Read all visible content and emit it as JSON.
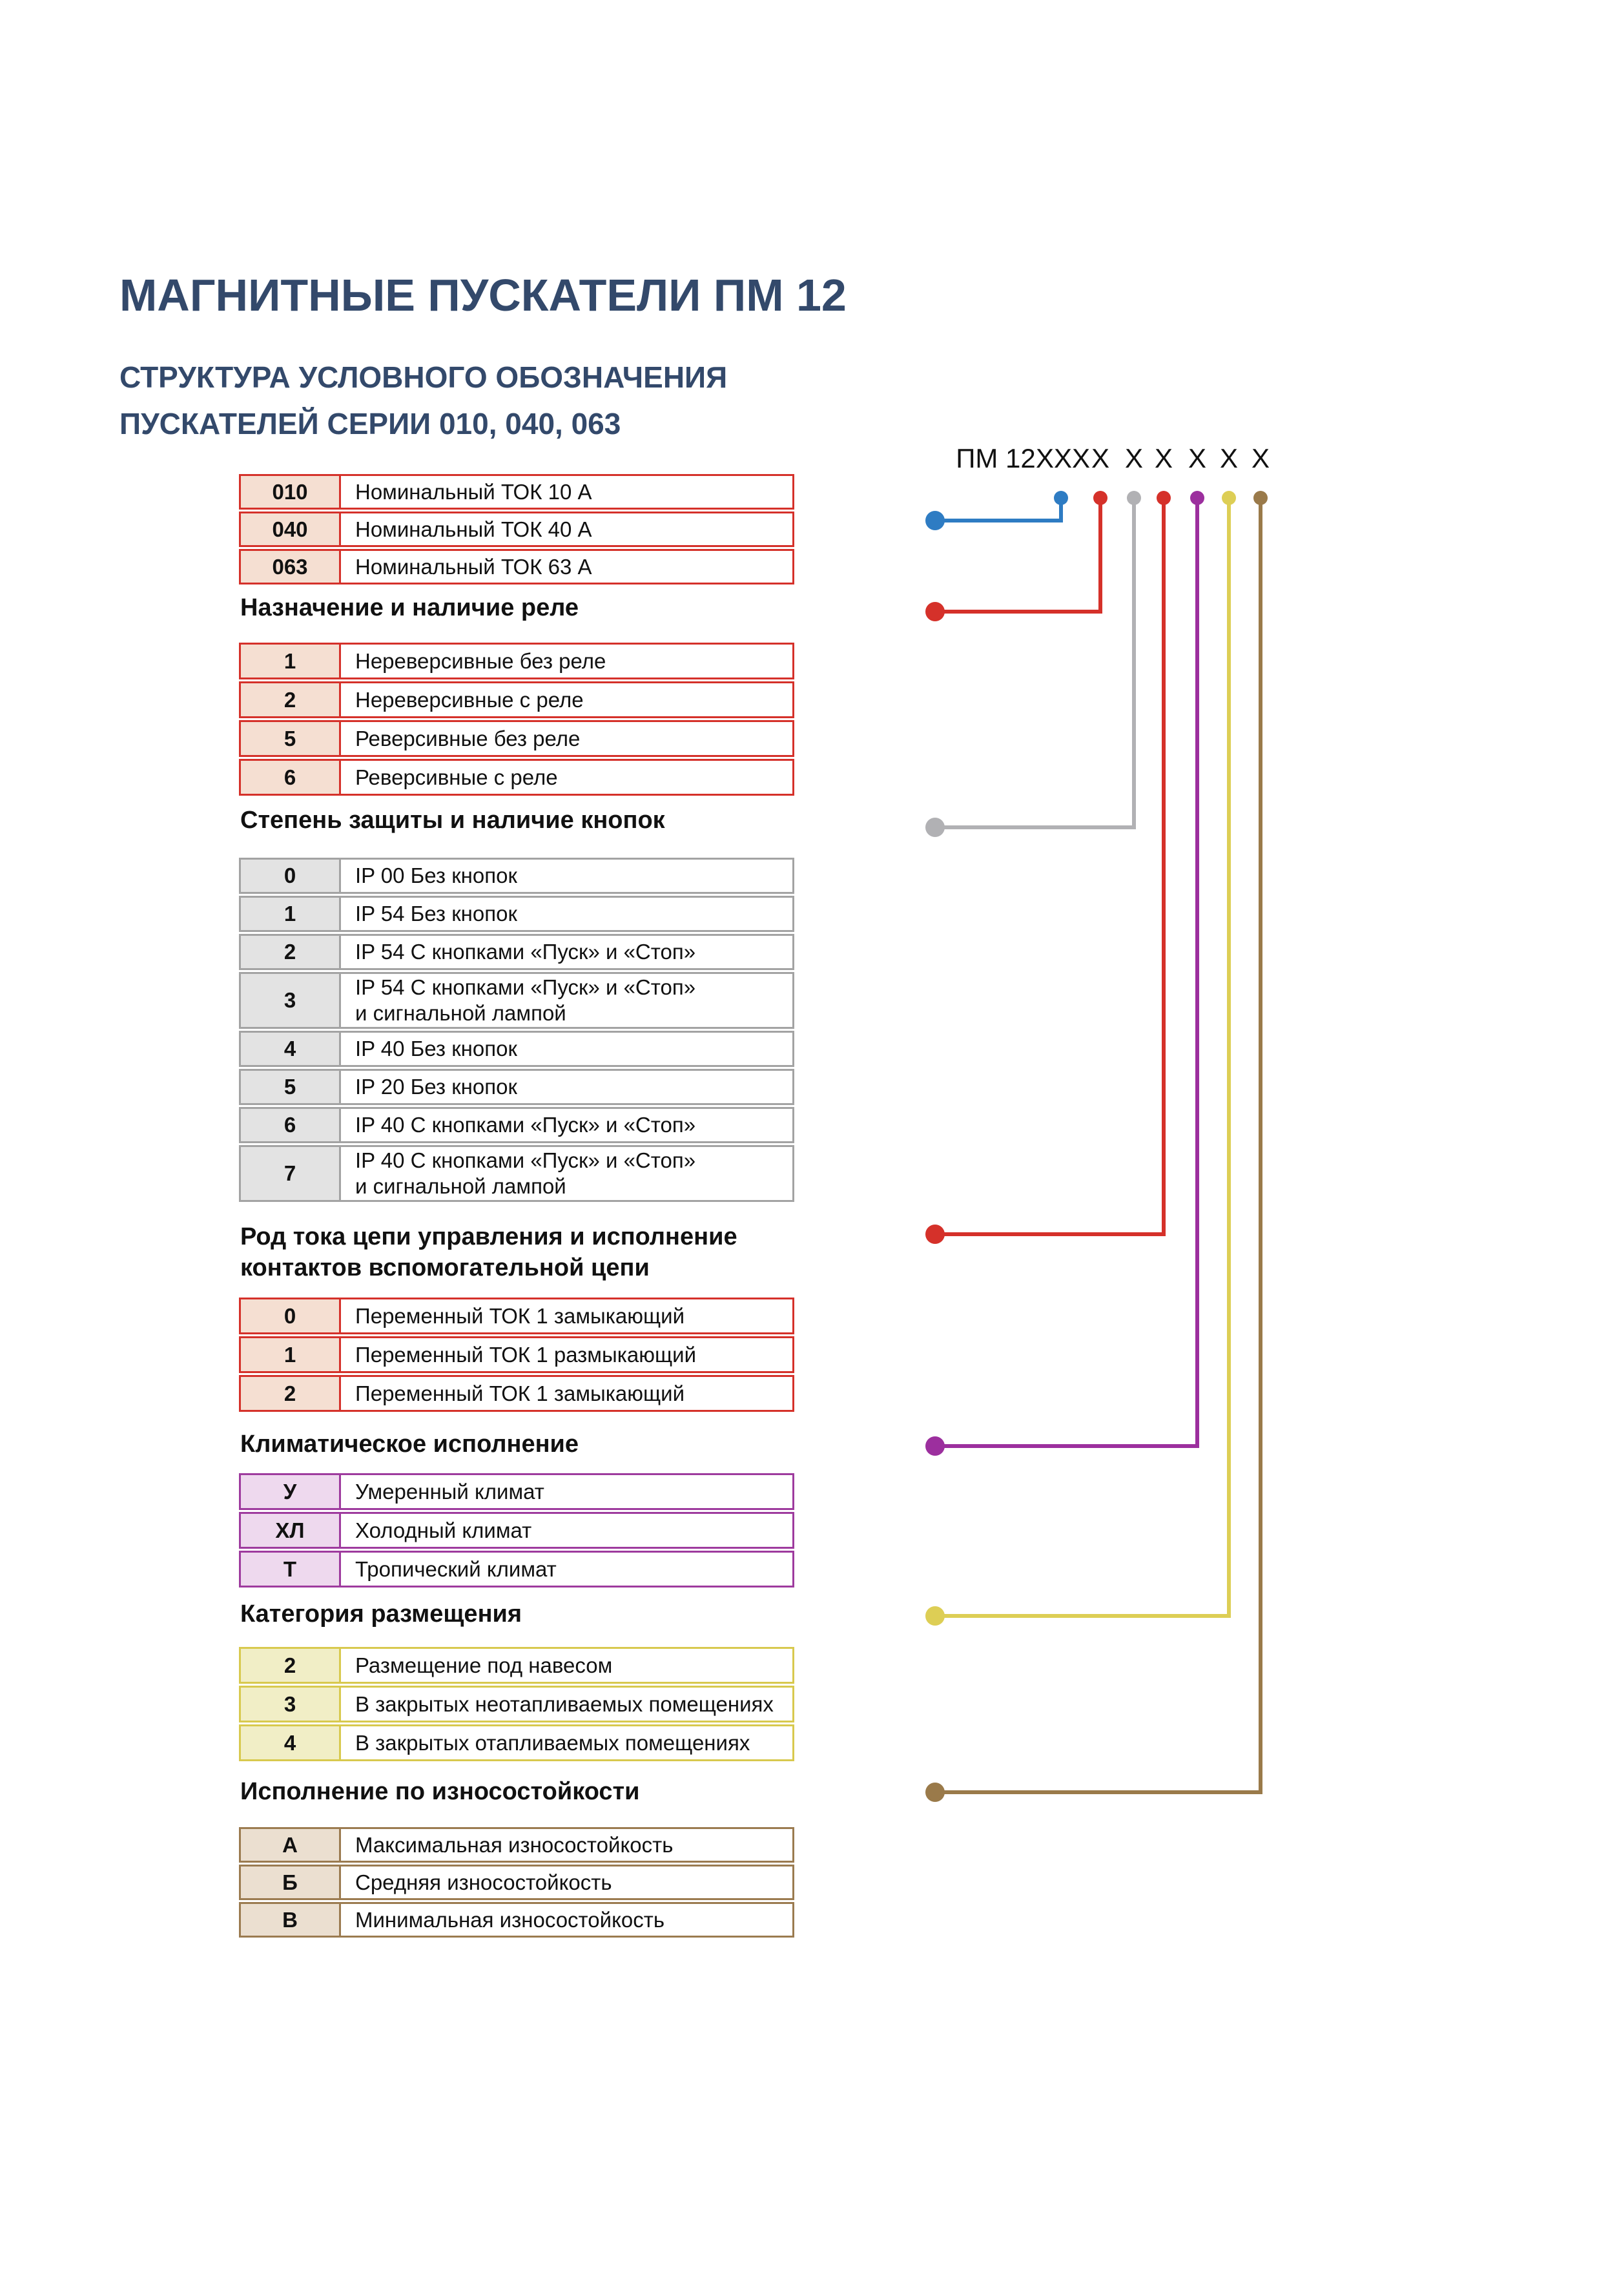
{
  "page": {
    "title": "МАГНИТНЫЕ ПУСКАТЕЛИ ПМ 12",
    "subtitle_line1": "СТРУКТУРА УСЛОВНОГО ОБОЗНАЧЕНИЯ",
    "subtitle_line2": "ПУСКАТЕЛЕЙ СЕРИИ 010, 040, 063"
  },
  "formula": {
    "prefix": "ПМ 12",
    "series": "XXX",
    "digit": "X"
  },
  "colors": {
    "title": "#33496b",
    "text": "#111111"
  },
  "sections": [
    {
      "id": "nominal-current",
      "header": "",
      "accent": "#2e7cc3",
      "table_border": "#d5312a",
      "code_bg": "#f5dfd2",
      "rows": [
        {
          "code": "010",
          "label": "Номинальный ТОК 10 А"
        },
        {
          "code": "040",
          "label": "Номинальный ТОК 40 А"
        },
        {
          "code": "063",
          "label": "Номинальный ТОК 63 А"
        }
      ]
    },
    {
      "id": "relay-purpose",
      "header": "Назначение и наличие реле",
      "accent": "#d5312a",
      "table_border": "#d5312a",
      "code_bg": "#f5dfd2",
      "rows": [
        {
          "code": "1",
          "label": "Нереверсивные без реле"
        },
        {
          "code": "2",
          "label": "Нереверсивные с реле"
        },
        {
          "code": "5",
          "label": "Реверсивные без реле"
        },
        {
          "code": "6",
          "label": "Реверсивные с реле"
        }
      ]
    },
    {
      "id": "protection-degree",
      "header": "Степень защиты и наличие кнопок",
      "accent": "#b1b1b4",
      "table_border": "#a3a3a3",
      "code_bg": "#e3e3e3",
      "rows": [
        {
          "code": "0",
          "label": "IP 00 Без кнопок"
        },
        {
          "code": "1",
          "label": "IP 54 Без кнопок"
        },
        {
          "code": "2",
          "label": "IP 54 С кнопками «Пуск» и «Стоп»"
        },
        {
          "code": "3",
          "label": "IP 54 С кнопками «Пуск» и «Стоп»\nи сигнальной лампой"
        },
        {
          "code": "4",
          "label": "IP 40 Без кнопок"
        },
        {
          "code": "5",
          "label": "IP 20 Без кнопок"
        },
        {
          "code": "6",
          "label": "IP 40 С кнопками «Пуск» и «Стоп»"
        },
        {
          "code": "7",
          "label": "IP 40 С кнопками «Пуск» и «Стоп»\nи сигнальной лампой"
        }
      ]
    },
    {
      "id": "control-circuit-current",
      "header": "Род тока цепи управления и исполнение\nконтактов вспомогательной цепи",
      "accent": "#d5312a",
      "table_border": "#d5312a",
      "code_bg": "#f5dfd2",
      "rows": [
        {
          "code": "0",
          "label": "Переменный ТОК  1 замыкающий"
        },
        {
          "code": "1",
          "label": "Переменный ТОК  1 размыкающий"
        },
        {
          "code": "2",
          "label": "Переменный ТОК  1 замыкающий"
        }
      ]
    },
    {
      "id": "climate",
      "header": "Климатическое исполнение",
      "accent": "#9c2f9e",
      "table_border": "#9e3b9e",
      "code_bg": "#eed9ee",
      "rows": [
        {
          "code": "У",
          "label": "Умеренный климат"
        },
        {
          "code": "ХЛ",
          "label": "Холодный климат"
        },
        {
          "code": "Т",
          "label": "Тропический климат"
        }
      ]
    },
    {
      "id": "placement-category",
      "header": "Категория размещения",
      "accent": "#ddce55",
      "table_border": "#d8c94e",
      "code_bg": "#f1eec6",
      "rows": [
        {
          "code": "2",
          "label": "Размещение под навесом"
        },
        {
          "code": "3",
          "label": "В закрытых неотапливаемых помещениях"
        },
        {
          "code": "4",
          "label": "В закрытых отапливаемых помещениях"
        }
      ]
    },
    {
      "id": "wear-resistance",
      "header": "Исполнение по износостойкости",
      "accent": "#9a7a4a",
      "table_border": "#9b7b50",
      "code_bg": "#ebdfd0",
      "rows": [
        {
          "code": "А",
          "label": "Максимальная износостойкость"
        },
        {
          "code": "Б",
          "label": "Средняя  износостойкость"
        },
        {
          "code": "В",
          "label": "Минимальная износостойкость"
        }
      ]
    }
  ]
}
